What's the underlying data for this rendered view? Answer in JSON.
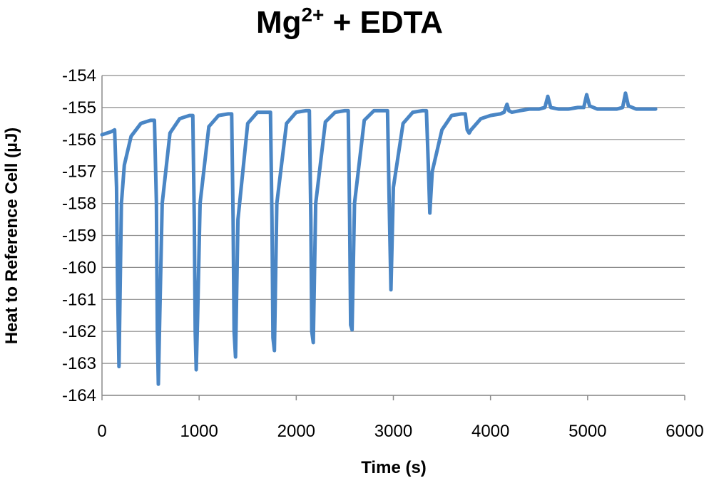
{
  "chart_data": {
    "type": "line",
    "title": {
      "base": "Mg",
      "superscript": "2+",
      "rest": " + EDTA"
    },
    "xlabel": "Time (s)",
    "ylabel": "Heat to Reference Cell (µJ)",
    "xlim": [
      0,
      6000
    ],
    "ylim": [
      -164,
      -154
    ],
    "xticks": [
      0,
      1000,
      2000,
      3000,
      4000,
      5000,
      6000
    ],
    "yticks": [
      -154,
      -155,
      -156,
      -157,
      -158,
      -159,
      -160,
      -161,
      -162,
      -163,
      -164
    ],
    "grid": "horizontal",
    "line_color": "#4a86c5",
    "series": [
      {
        "x": [
          0,
          100,
          130,
          150,
          160,
          175,
          185,
          200,
          230,
          300,
          400,
          500,
          540,
          560,
          570,
          580,
          595,
          620,
          700,
          800,
          900,
          935,
          950,
          960,
          970,
          985,
          1010,
          1100,
          1200,
          1300,
          1335,
          1350,
          1360,
          1375,
          1400,
          1500,
          1600,
          1700,
          1735,
          1750,
          1760,
          1775,
          1800,
          1900,
          2000,
          2100,
          2135,
          2150,
          2160,
          2175,
          2200,
          2300,
          2400,
          2500,
          2535,
          2550,
          2560,
          2575,
          2600,
          2700,
          2800,
          2900,
          2940,
          2960,
          2975,
          3000,
          3100,
          3200,
          3300,
          3340,
          3360,
          3375,
          3400,
          3500,
          3600,
          3700,
          3740,
          3760,
          3780,
          3800,
          3900,
          4000,
          4100,
          4140,
          4170,
          4190,
          4220,
          4300,
          4400,
          4500,
          4560,
          4590,
          4620,
          4700,
          4800,
          4900,
          4960,
          4990,
          5020,
          5100,
          5200,
          5300,
          5360,
          5390,
          5420,
          5500,
          5600,
          5700
        ],
        "y": [
          -155.85,
          -155.75,
          -155.7,
          -157.5,
          -160.5,
          -163.1,
          -161.0,
          -158.0,
          -156.8,
          -155.9,
          -155.5,
          -155.4,
          -155.4,
          -158.0,
          -162.0,
          -163.65,
          -161.5,
          -158.0,
          -155.8,
          -155.35,
          -155.25,
          -155.25,
          -158.5,
          -162.0,
          -163.2,
          -161.5,
          -158.0,
          -155.6,
          -155.25,
          -155.2,
          -155.2,
          -158.5,
          -162.0,
          -162.8,
          -158.5,
          -155.5,
          -155.15,
          -155.15,
          -155.15,
          -158.5,
          -162.2,
          -162.6,
          -158.0,
          -155.5,
          -155.15,
          -155.1,
          -155.1,
          -158.5,
          -162.0,
          -162.35,
          -158.0,
          -155.45,
          -155.15,
          -155.1,
          -155.1,
          -158.5,
          -161.8,
          -161.95,
          -158.0,
          -155.4,
          -155.1,
          -155.1,
          -155.1,
          -158.5,
          -160.7,
          -157.5,
          -155.5,
          -155.15,
          -155.1,
          -155.1,
          -156.8,
          -158.3,
          -157.0,
          -155.7,
          -155.25,
          -155.2,
          -155.2,
          -155.7,
          -155.8,
          -155.7,
          -155.35,
          -155.25,
          -155.2,
          -155.15,
          -154.9,
          -155.1,
          -155.15,
          -155.1,
          -155.05,
          -155.05,
          -155.0,
          -154.65,
          -155.0,
          -155.05,
          -155.05,
          -155.0,
          -155.0,
          -154.6,
          -154.95,
          -155.05,
          -155.05,
          -155.05,
          -155.0,
          -154.55,
          -154.95,
          -155.05,
          -155.05,
          -155.05
        ]
      }
    ]
  }
}
